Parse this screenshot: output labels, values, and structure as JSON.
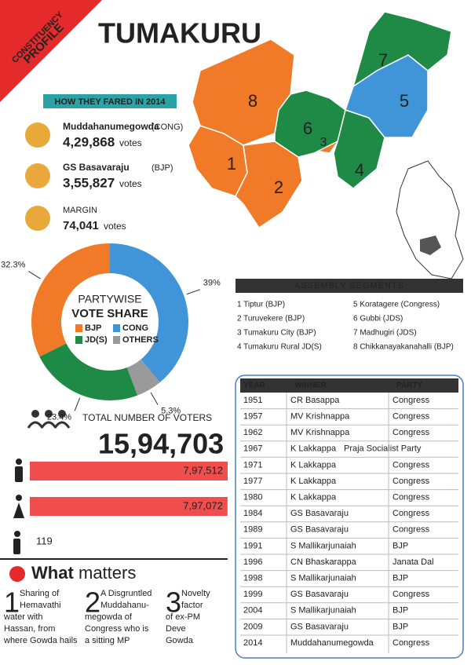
{
  "badge": [
    "CONSTITUENCY",
    "PROFILE"
  ],
  "title": "TUMAKURU",
  "results": {
    "heading": "HOW THEY FARED IN 2014",
    "candidates": [
      {
        "name": "Muddahanumegowda",
        "party": "(CONG)",
        "votes": "4,29,868",
        "unit": "votes"
      },
      {
        "name": "GS Basavaraju",
        "party": "(BJP)",
        "votes": "3,55,827",
        "unit": "votes"
      }
    ],
    "margin": {
      "label": "MARGIN",
      "votes": "74,041",
      "unit": "votes"
    }
  },
  "chart_data": [
    {
      "type": "pie",
      "title": [
        "PARTYWISE",
        "VOTE SHARE"
      ],
      "categories": [
        "BJP",
        "CONG",
        "JD(S)",
        "OTHERS"
      ],
      "values": [
        32.3,
        39,
        23.4,
        5.3
      ],
      "value_labels": [
        "32.3%",
        "39%",
        "23.4%",
        "5.3%"
      ],
      "colors": [
        "#f07a28",
        "#3f95d8",
        "#1f8a45",
        "#9a9a9a"
      ]
    },
    {
      "type": "bar",
      "title": "TOTAL NUMBER OF VOTERS",
      "total": "15,94,703",
      "categories": [
        null,
        null,
        null
      ],
      "values": [
        797512,
        797072,
        119
      ],
      "value_labels": [
        "7,97,512",
        "7,97,072",
        "119"
      ],
      "color": "#f04e4e"
    }
  ],
  "map": {
    "labels": [
      "1",
      "2",
      "3",
      "4",
      "5",
      "6",
      "7",
      "8"
    ]
  },
  "segments": {
    "heading": "ASSEMBLY SEGMENTS",
    "items": [
      "1 Tiptur (BJP)",
      "2 Turuvekere (BJP)",
      "3 Tumakuru City (BJP)",
      "4 Tumakuru Rural JD(S)",
      "5 Koratagere (Congress)",
      "6 Gubbi (JDS)",
      "7 Madhugiri (JDS)",
      "8 Chikkanayakanahalli (BJP)"
    ]
  },
  "table": {
    "header": [
      "YEAR",
      "WINNER",
      "PARTY"
    ],
    "rows": [
      [
        "1951",
        "CR Basappa",
        "Congress"
      ],
      [
        "1957",
        "MV Krishnappa",
        "Congress"
      ],
      [
        "1962",
        "MV Krishnappa",
        "Congress"
      ],
      [
        "1967",
        "K Lakkappa",
        "Praja Socialist Party"
      ],
      [
        "1971",
        "K Lakkappa",
        "Congress"
      ],
      [
        "1977",
        "K Lakkappa",
        "Congress"
      ],
      [
        "1980",
        "K Lakkappa",
        "Congress"
      ],
      [
        "1984",
        "GS Basavaraju",
        "Congress"
      ],
      [
        "1989",
        "GS Basavaraju",
        "Congress"
      ],
      [
        "1991",
        "S Mallikarjunaiah",
        "BJP"
      ],
      [
        "1996",
        "CN Bhaskarappa",
        "Janata Dal"
      ],
      [
        "1998",
        "S Mallikarjunaiah",
        "BJP"
      ],
      [
        "1999",
        "GS Basavaraju",
        "Congress"
      ],
      [
        "2004",
        "S Mallikarjunaiah",
        "BJP"
      ],
      [
        "2009",
        "GS Basavaraju",
        "BJP"
      ],
      [
        "2014",
        "Muddahanumegowda",
        "Congress"
      ]
    ]
  },
  "what_matters": {
    "title": [
      "What",
      "matters"
    ],
    "items": [
      {
        "number": "1",
        "lines": [
          "Sharing of",
          "Hemavathi",
          "water with",
          "Hassan, from",
          "where Gowda hails"
        ]
      },
      {
        "number": "2",
        "lines": [
          "A Disgruntled",
          "Muddahanu-",
          "megowda of",
          "Congress who is",
          "a sitting MP"
        ]
      },
      {
        "number": "3",
        "lines": [
          "Novelty",
          "factor",
          "of ex-PM",
          "Deve",
          "Gowda"
        ]
      }
    ]
  }
}
